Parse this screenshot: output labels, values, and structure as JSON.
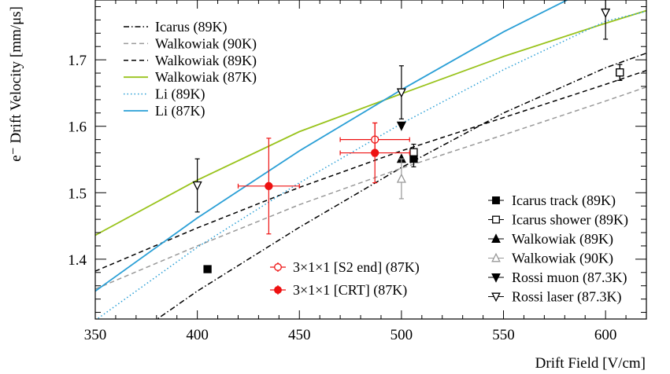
{
  "chart_data": {
    "type": "line",
    "xlabel": "Drift Field [V/cm]",
    "ylabel": "e⁻ Drift Velocity [mm/μs]",
    "xlim": [
      350,
      620
    ],
    "ylim": [
      1.31,
      1.79
    ],
    "xticks": [
      350,
      400,
      450,
      500,
      550,
      600
    ],
    "yticks": [
      1.4,
      1.5,
      1.6,
      1.7
    ],
    "grid": false,
    "curves": [
      {
        "name": "Icarus (89K)",
        "color": "#000000",
        "dash": "dashdot",
        "x": [
          350,
          400,
          450,
          500,
          550,
          600,
          620
        ],
        "y": [
          1.245,
          1.352,
          1.448,
          1.538,
          1.62,
          1.688,
          1.71
        ]
      },
      {
        "name": "Walkowiak (90K)",
        "color": "#999999",
        "dash": "dashed",
        "x": [
          350,
          400,
          450,
          500,
          550,
          600,
          620
        ],
        "y": [
          1.355,
          1.42,
          1.482,
          1.537,
          1.587,
          1.638,
          1.659
        ]
      },
      {
        "name": "Walkowiak (89K)",
        "color": "#000000",
        "dash": "dashed",
        "x": [
          350,
          400,
          450,
          500,
          550,
          600,
          620
        ],
        "y": [
          1.382,
          1.447,
          1.508,
          1.563,
          1.613,
          1.663,
          1.684
        ]
      },
      {
        "name": "Walkowiak (87K)",
        "color": "#99c31c",
        "dash": "solid",
        "x": [
          350,
          400,
          450,
          500,
          550,
          600,
          620
        ],
        "y": [
          1.436,
          1.519,
          1.592,
          1.649,
          1.705,
          1.755,
          1.774
        ]
      },
      {
        "name": "Li (89K)",
        "color": "#2a9fd6",
        "dash": "dotted",
        "x": [
          350,
          400,
          450,
          500,
          550,
          600,
          620
        ],
        "y": [
          1.308,
          1.418,
          1.515,
          1.604,
          1.685,
          1.758,
          1.773
        ]
      },
      {
        "name": "Li (87K)",
        "color": "#2a9fd6",
        "dash": "solid",
        "x": [
          350,
          400,
          450,
          500,
          550,
          589
        ],
        "y": [
          1.352,
          1.462,
          1.563,
          1.655,
          1.742,
          1.802
        ]
      }
    ],
    "points": [
      {
        "name": "Icarus track (89K)",
        "marker": "square-filled",
        "color": "#000000",
        "data": [
          {
            "x": 405,
            "y": 1.385,
            "ey": 0.0
          },
          {
            "x": 506,
            "y": 1.551,
            "ey": 0.012
          },
          {
            "x": 607,
            "y": 1.681,
            "ey": 0.012
          }
        ]
      },
      {
        "name": "Icarus shower (89K)",
        "marker": "square-open",
        "color": "#000000",
        "data": [
          {
            "x": 506,
            "y": 1.561,
            "ey": 0.012
          },
          {
            "x": 607,
            "y": 1.681,
            "ey": 0.012
          }
        ]
      },
      {
        "name": "Walkowiak (89K)",
        "marker": "triangle-up-filled",
        "color": "#000000",
        "data": [
          {
            "x": 500,
            "y": 1.551,
            "ey": 0.0
          }
        ]
      },
      {
        "name": "Walkowiak (90K)",
        "marker": "triangle-up-open",
        "color": "#999999",
        "data": [
          {
            "x": 500,
            "y": 1.521,
            "ey": 0.03
          }
        ]
      },
      {
        "name": "Rossi muon (87.3K)",
        "marker": "triangle-down-filled",
        "color": "#000000",
        "data": [
          {
            "x": 500,
            "y": 1.601,
            "ey": 0.0
          }
        ]
      },
      {
        "name": "Rossi laser (87.3K)",
        "marker": "triangle-down-open",
        "color": "#000000",
        "data": [
          {
            "x": 400,
            "y": 1.511,
            "ey": 0.04
          },
          {
            "x": 500,
            "y": 1.651,
            "ey": 0.04
          },
          {
            "x": 600,
            "y": 1.771,
            "ey": 0.04
          }
        ]
      },
      {
        "name": "3×1×1 [S2 end] (87K)",
        "marker": "circle-open",
        "color": "#ee1111",
        "data": [
          {
            "x": 487,
            "y": 1.58,
            "ey": 0.025,
            "ex": 17
          }
        ]
      },
      {
        "name": "3×1×1 [CRT] (87K)",
        "marker": "circle-filled",
        "color": "#ee1111",
        "data": [
          {
            "x": 435,
            "y": 1.51,
            "ey": 0.072,
            "ex": 15
          },
          {
            "x": 487,
            "y": 1.56,
            "ey": 0.045,
            "ex": 17
          }
        ]
      }
    ],
    "legend_lines": [
      "Icarus (89K)",
      "Walkowiak (90K)",
      "Walkowiak (89K)",
      "Walkowiak (87K)",
      "Li (89K)",
      "Li (87K)"
    ],
    "legend_lines_placement": "top-left",
    "legend_red": [
      "3×1×1 [S2 end] (87K)",
      "3×1×1 [CRT] (87K)"
    ],
    "legend_red_placement": "bottom-center",
    "legend_markers": [
      "Icarus track (89K)",
      "Icarus shower (89K)",
      "Walkowiak (89K)",
      "Walkowiak (90K)",
      "Rossi muon (87.3K)",
      "Rossi laser (87.3K)"
    ],
    "legend_markers_placement": "bottom-right"
  }
}
